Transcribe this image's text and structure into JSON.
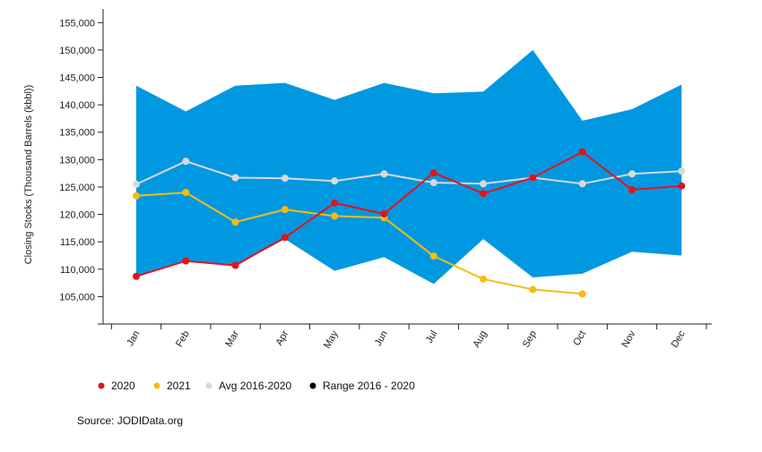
{
  "chart_data": {
    "type": "line",
    "ylabel": "Closing Stocks (Thousand Barrels (kbbl))",
    "xlabel": "",
    "categories": [
      "Jan",
      "Feb",
      "Mar",
      "Apr",
      "May",
      "Jun",
      "Jul",
      "Aug",
      "Sep",
      "Oct",
      "Nov",
      "Dec"
    ],
    "ylim": [
      100000,
      157500
    ],
    "yticks": [
      105000,
      110000,
      115000,
      120000,
      125000,
      130000,
      135000,
      140000,
      145000,
      150000,
      155000
    ],
    "ytick_labels": [
      "105,000",
      "110,000",
      "115,000",
      "120,000",
      "125,000",
      "130,000",
      "135,000",
      "140,000",
      "145,000",
      "150,000",
      "155,000"
    ],
    "grid": false,
    "legend_position": "bottom-left",
    "series": [
      {
        "name": "2020",
        "color": "#e8101e",
        "values": [
          108700,
          111500,
          110700,
          115800,
          122100,
          120100,
          127600,
          123800,
          126700,
          131400,
          124500,
          125200
        ]
      },
      {
        "name": "2021",
        "color": "#f5bd10",
        "values": [
          123400,
          124000,
          118600,
          120900,
          119700,
          119400,
          112400,
          108200,
          106300,
          105500,
          null,
          null
        ]
      },
      {
        "name": "Avg 2016-2020",
        "color": "#d9d9d9",
        "values": [
          125500,
          129700,
          126700,
          126600,
          126100,
          127400,
          125800,
          125600,
          126700,
          125600,
          127400,
          127900
        ]
      }
    ],
    "range": {
      "name": "Range 2016 - 2020",
      "fill_color": "#0098e1",
      "legend_color": "#000000",
      "upper": [
        143500,
        138800,
        143500,
        144000,
        140900,
        144000,
        142100,
        142400,
        150000,
        137100,
        139200,
        143700
      ],
      "lower": [
        108700,
        111500,
        110700,
        115500,
        109700,
        112200,
        107300,
        115500,
        108500,
        109200,
        113200,
        112500
      ]
    },
    "source": "Source: JODIData.org"
  }
}
